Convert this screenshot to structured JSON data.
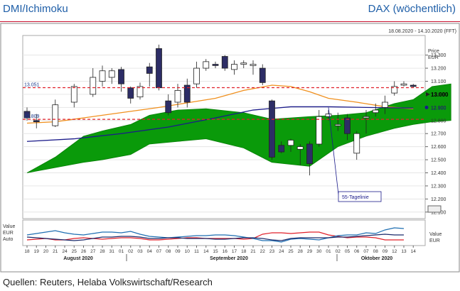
{
  "header": {
    "left": "DMI/Ichimoku",
    "right": "DAX (wöchentlich)"
  },
  "footer": {
    "source": "Quellen: Reuters, Helaba Volkswirtschaft/Research"
  },
  "chart_data": {
    "type": "candlestick",
    "date_range": "18.08.2020 - 14.10.2020 (FFT)",
    "y_axis_title": [
      "Price",
      "EUR"
    ],
    "ylim": [
      12050,
      13450
    ],
    "ticks": [
      13300,
      13200,
      13100,
      13000,
      12900,
      12800,
      12700,
      12600,
      12500,
      12400,
      12300,
      12200,
      12100
    ],
    "tick_labels": [
      "13.300",
      "13.200",
      "13.100",
      "13.000",
      "12.900",
      "12.800",
      "12.700",
      "12.600",
      "12.500",
      "12.400",
      "12.300",
      "12.200",
      "12.100"
    ],
    "x_ticks": [
      "18",
      "19",
      "20",
      "21",
      "24",
      "25",
      "26",
      "27",
      "28",
      "31",
      "01",
      "02",
      "03",
      "04",
      "07",
      "08",
      "09",
      "10",
      "11",
      "14",
      "15",
      "16",
      "17",
      "18",
      "21",
      "22",
      "23",
      "24",
      "25",
      "28",
      "29",
      "30",
      "01",
      "02",
      "05",
      "06",
      "07",
      "08",
      "09",
      "12",
      "13",
      "14"
    ],
    "months": [
      "August 2020",
      "September 2020",
      "Oktober 2020"
    ],
    "hlines": [
      {
        "label": "13.051",
        "value": 13051,
        "color": "#e0202a"
      },
      {
        "label": "12.809",
        "value": 12809,
        "color": "#e0202a"
      }
    ],
    "annotation": "55-Tagelinie",
    "right_markers": {
      "current": "13.000",
      "blue": "12.900",
      "green": "12.800"
    },
    "candles": [
      {
        "i": 0,
        "o": 12870,
        "c": 12820,
        "h": 12900,
        "l": 12800
      },
      {
        "i": 1,
        "o": 12800,
        "c": 12790,
        "h": 12850,
        "l": 12740
      },
      {
        "i": 3,
        "o": 12760,
        "c": 12920,
        "h": 12960,
        "l": 12750
      },
      {
        "i": 5,
        "o": 12940,
        "c": 13060,
        "h": 13080,
        "l": 12900
      },
      {
        "i": 7,
        "o": 13000,
        "c": 13130,
        "h": 13200,
        "l": 12980
      },
      {
        "i": 8,
        "o": 13100,
        "c": 13180,
        "h": 13220,
        "l": 13060
      },
      {
        "i": 9,
        "o": 13130,
        "c": 13180,
        "h": 13200,
        "l": 13080
      },
      {
        "i": 10,
        "o": 13190,
        "c": 13080,
        "h": 13210,
        "l": 13020
      },
      {
        "i": 11,
        "o": 13050,
        "c": 12970,
        "h": 13060,
        "l": 12930
      },
      {
        "i": 12,
        "o": 12980,
        "c": 13060,
        "h": 13090,
        "l": 12960
      },
      {
        "i": 13,
        "o": 13210,
        "c": 13160,
        "h": 13240,
        "l": 13060
      },
      {
        "i": 14,
        "o": 13350,
        "c": 13050,
        "h": 13380,
        "l": 13030
      },
      {
        "i": 15,
        "o": 12950,
        "c": 12860,
        "h": 13000,
        "l": 12840
      },
      {
        "i": 16,
        "o": 12940,
        "c": 13030,
        "h": 13080,
        "l": 12900
      },
      {
        "i": 17,
        "o": 13070,
        "c": 12940,
        "h": 13120,
        "l": 12900
      },
      {
        "i": 18,
        "o": 13080,
        "c": 13200,
        "h": 13250,
        "l": 13050
      },
      {
        "i": 19,
        "o": 13200,
        "c": 13250,
        "h": 13270,
        "l": 13180
      },
      {
        "i": 20,
        "o": 13230,
        "c": 13220,
        "h": 13250,
        "l": 13200
      },
      {
        "i": 21,
        "o": 13290,
        "c": 13200,
        "h": 13300,
        "l": 13180
      },
      {
        "i": 22,
        "o": 13190,
        "c": 13230,
        "h": 13260,
        "l": 13150
      },
      {
        "i": 23,
        "o": 13230,
        "c": 13240,
        "h": 13260,
        "l": 13200
      },
      {
        "i": 24,
        "o": 13220,
        "c": 13230,
        "h": 13260,
        "l": 13150
      },
      {
        "i": 25,
        "o": 13200,
        "c": 13090,
        "h": 13230,
        "l": 13070
      },
      {
        "i": 26,
        "o": 12950,
        "c": 12520,
        "h": 12960,
        "l": 12500
      },
      {
        "i": 27,
        "o": 12610,
        "c": 12560,
        "h": 12640,
        "l": 12550
      },
      {
        "i": 28,
        "o": 12610,
        "c": 12650,
        "h": 12660,
        "l": 12560
      },
      {
        "i": 29,
        "o": 12580,
        "c": 12600,
        "h": 12620,
        "l": 12460
      },
      {
        "i": 30,
        "o": 12620,
        "c": 12470,
        "h": 12640,
        "l": 12380
      },
      {
        "i": 31,
        "o": 12620,
        "c": 12830,
        "h": 12880,
        "l": 12600
      },
      {
        "i": 32,
        "o": 12830,
        "c": 12850,
        "h": 12880,
        "l": 12800
      },
      {
        "i": 33,
        "o": 12760,
        "c": 12770,
        "h": 12860,
        "l": 12720
      },
      {
        "i": 34,
        "o": 12820,
        "c": 12700,
        "h": 12850,
        "l": 12650
      },
      {
        "i": 35,
        "o": 12550,
        "c": 12700,
        "h": 12720,
        "l": 12500
      },
      {
        "i": 36,
        "o": 12820,
        "c": 12830,
        "h": 12880,
        "l": 12700
      },
      {
        "i": 37,
        "o": 12860,
        "c": 12880,
        "h": 12930,
        "l": 12830
      },
      {
        "i": 38,
        "o": 12900,
        "c": 12940,
        "h": 12990,
        "l": 12850
      },
      {
        "i": 39,
        "o": 13010,
        "c": 13060,
        "h": 13100,
        "l": 12990
      },
      {
        "i": 40,
        "o": 13070,
        "c": 13080,
        "h": 13100,
        "l": 13060
      },
      {
        "i": 41,
        "o": 13070,
        "c": 13060,
        "h": 13080,
        "l": 13050
      }
    ],
    "orange_line": [
      [
        0,
        12780
      ],
      [
        3,
        12790
      ],
      [
        5,
        12810
      ],
      [
        8,
        12840
      ],
      [
        11,
        12870
      ],
      [
        14,
        12900
      ],
      [
        17,
        12935
      ],
      [
        20,
        12970
      ],
      [
        23,
        13030
      ],
      [
        26,
        13070
      ],
      [
        28,
        13060
      ],
      [
        30,
        13020
      ],
      [
        32,
        12970
      ],
      [
        35,
        12940
      ],
      [
        38,
        12905
      ],
      [
        41,
        12890
      ]
    ],
    "blue_line": [
      [
        0,
        12640
      ],
      [
        5,
        12660
      ],
      [
        10,
        12700
      ],
      [
        15,
        12750
      ],
      [
        20,
        12820
      ],
      [
        24,
        12880
      ],
      [
        28,
        12905
      ],
      [
        32,
        12905
      ],
      [
        36,
        12900
      ],
      [
        41,
        12895
      ]
    ],
    "cloud_upper": [
      [
        0,
        12400
      ],
      [
        3,
        12520
      ],
      [
        6,
        12680
      ],
      [
        8,
        12720
      ],
      [
        11,
        12770
      ],
      [
        13,
        12840
      ],
      [
        16,
        12880
      ],
      [
        19,
        12890
      ],
      [
        23,
        12860
      ],
      [
        26,
        12810
      ],
      [
        30,
        12830
      ],
      [
        33,
        12840
      ],
      [
        36,
        12860
      ],
      [
        39,
        12930
      ],
      [
        41,
        12960
      ],
      [
        43,
        13060
      ],
      [
        45,
        13080
      ]
    ],
    "cloud_lower": [
      [
        0,
        12400
      ],
      [
        3,
        12440
      ],
      [
        6,
        12480
      ],
      [
        8,
        12500
      ],
      [
        11,
        12540
      ],
      [
        13,
        12620
      ],
      [
        16,
        12640
      ],
      [
        19,
        12660
      ],
      [
        23,
        12590
      ],
      [
        26,
        12480
      ],
      [
        30,
        12450
      ],
      [
        33,
        12600
      ],
      [
        36,
        12680
      ],
      [
        39,
        12740
      ],
      [
        41,
        12770
      ],
      [
        43,
        12790
      ],
      [
        45,
        12800
      ]
    ],
    "dmi": {
      "labels": [
        "Value",
        "EUR",
        "Auto"
      ],
      "right_labels": [
        "Value",
        "EUR"
      ],
      "red": [
        24,
        23,
        22,
        24,
        24,
        22,
        21,
        22,
        23,
        22,
        21,
        21,
        22,
        24,
        24,
        23,
        22,
        21,
        21,
        22,
        22,
        22,
        22,
        23,
        22,
        16,
        14,
        14,
        15,
        14,
        13,
        13,
        17,
        19,
        21,
        20,
        20,
        21,
        24,
        24,
        24
      ],
      "blue": [
        17,
        15,
        13,
        11,
        14,
        16,
        17,
        15,
        13,
        13,
        14,
        12,
        16,
        19,
        20,
        21,
        20,
        19,
        18,
        18,
        17,
        17,
        18,
        20,
        22,
        25,
        25,
        27,
        23,
        22,
        23,
        24,
        21,
        18,
        17,
        17,
        14,
        15,
        10,
        7,
        8
      ],
      "blue_dark": [
        20,
        21,
        22,
        23,
        24,
        25,
        24,
        22,
        20,
        20,
        19,
        19,
        20,
        22,
        22,
        21,
        21,
        22,
        22,
        22,
        23,
        23,
        22,
        21,
        21,
        22,
        24,
        25,
        22,
        21,
        21,
        21,
        21,
        20,
        20,
        19,
        18,
        17,
        16,
        17,
        17
      ]
    }
  }
}
